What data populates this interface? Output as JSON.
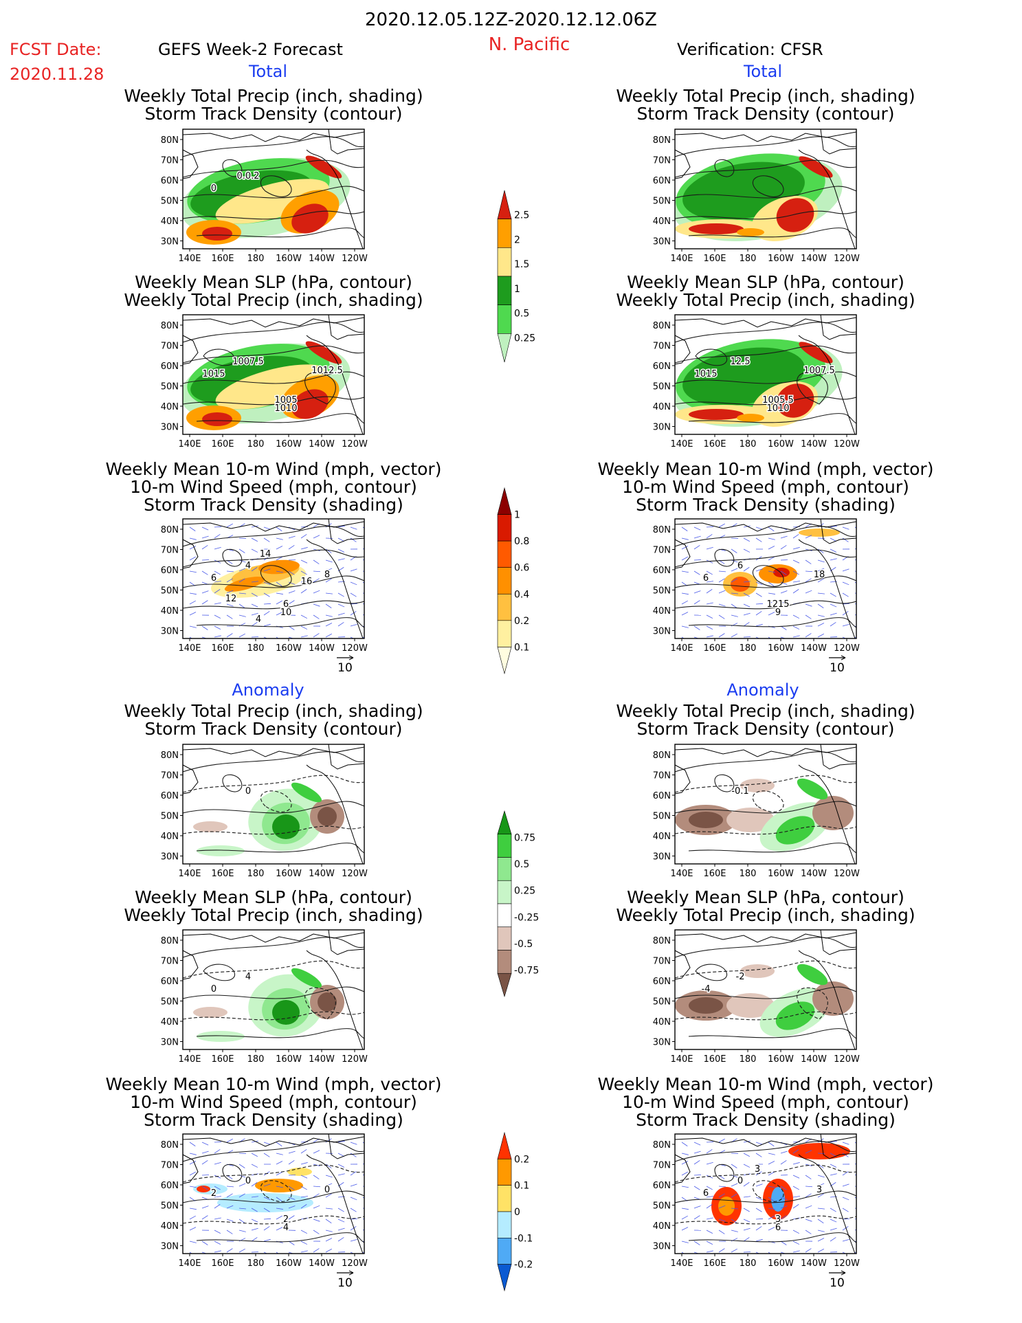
{
  "header": {
    "title": "2020.12.05.12Z-2020.12.12.06Z",
    "fcst_label": "FCST Date:",
    "fcst_date": "2020.11.28",
    "region": "N. Pacific",
    "left_title": "GEFS Week-2 Forecast",
    "right_title": "Verification: CFSR"
  },
  "sections": {
    "total": "Total",
    "anomaly": "Anomaly"
  },
  "panel_titles": {
    "precip_track": [
      "Weekly Total Precip (inch, shading)",
      "Storm Track Density (contour)"
    ],
    "slp_precip": [
      "Weekly Mean SLP (hPa, contour)",
      "Weekly Total Precip (inch, shading)"
    ],
    "wind_track": [
      "Weekly Mean 10-m Wind (mph, vector)",
      "10-m Wind Speed (mph, contour)",
      "Storm Track Density (shading)"
    ]
  },
  "axes": {
    "lat_ticks": [
      "80N",
      "70N",
      "60N",
      "50N",
      "40N",
      "30N"
    ],
    "lon_ticks": [
      "140E",
      "160E",
      "180",
      "160W",
      "140W",
      "120W"
    ]
  },
  "vector_ref": "10",
  "colorbars": {
    "precip_total": {
      "labels": [
        "2.5",
        "2",
        "1.5",
        "1",
        "0.5",
        "0.25"
      ],
      "colors": [
        "#d62010",
        "#ff9f00",
        "#ffe78a",
        "#1e9c1e",
        "#4fd94f",
        "#bff0bf"
      ]
    },
    "track_total": {
      "labels": [
        "1",
        "0.8",
        "0.6",
        "0.4",
        "0.2",
        "0.1"
      ],
      "colors": [
        "#8c0000",
        "#d91a00",
        "#ff5a00",
        "#ff9000",
        "#ffc040",
        "#fff0a0",
        "#fffde0"
      ]
    },
    "precip_anom": {
      "labels": [
        "0.75",
        "0.5",
        "0.25",
        "-0.25",
        "-0.5",
        "-0.75"
      ],
      "colors": [
        "#189618",
        "#3fce3f",
        "#8fe88f",
        "#c8f5c8",
        "#ffffff",
        "#e0c6bb",
        "#b38c7c",
        "#7a5446"
      ]
    },
    "track_anom": {
      "labels": [
        "0.2",
        "0.1",
        "0",
        "-0.1",
        "-0.2"
      ],
      "colors": [
        "#ff3300",
        "#ff9900",
        "#ffe266",
        "#b5ecff",
        "#4faaf5",
        "#0a5ad2"
      ]
    }
  },
  "panel_annotations": {
    "L1": [
      "0.0.2",
      "0"
    ],
    "L2": [
      "1007.5",
      "1015",
      "1012.5",
      "1005",
      "1010"
    ],
    "L3": [
      "4",
      "6",
      "8",
      "6",
      "10",
      "14",
      "16",
      "12",
      "4"
    ],
    "L4": [
      "0"
    ],
    "L5": [
      "4",
      "0"
    ],
    "L6": [
      "0",
      "2",
      "0",
      "2",
      "4"
    ],
    "R1": [],
    "R2": [
      "12.5",
      "1015",
      "1007.5",
      "1005.5",
      "1010"
    ],
    "R3": [
      "6",
      "6",
      "18",
      "1215",
      "9"
    ],
    "R4": [
      "-0.1"
    ],
    "R5": [
      "-2",
      "-4"
    ],
    "R6": [
      "0",
      "6",
      "3",
      "3",
      "6",
      "3"
    ]
  }
}
